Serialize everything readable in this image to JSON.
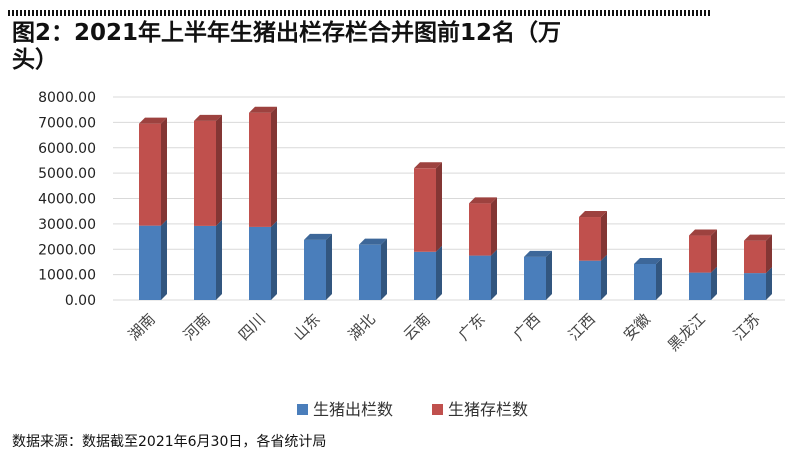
{
  "figure": {
    "title": "图2：2021年上半年生猪出栏存栏合并图前12名（万头）",
    "source_note": "数据来源：数据截至2021年6月30日，各省统计局"
  },
  "colors": {
    "series_blue": "#4a7ebb",
    "series_red": "#c0504d",
    "grid": "#d9d9d9"
  },
  "chart_data": {
    "type": "bar",
    "stacked": true,
    "style": "3d-column",
    "title": "图2：2021年上半年生猪出栏存栏合并图前12名（万头）",
    "categories": [
      "湖南",
      "河南",
      "四川",
      "山东",
      "湖北",
      "云南",
      "广东",
      "广西",
      "江西",
      "安徽",
      "黑龙江",
      "江苏"
    ],
    "series": [
      {
        "name": "生猪出栏数",
        "values": [
          2930,
          2920,
          2880,
          2370,
          2180,
          1900,
          1750,
          1700,
          1550,
          1420,
          1080,
          1060
        ]
      },
      {
        "name": "生猪存栏数",
        "values": [
          4020,
          4140,
          4500,
          0,
          0,
          3290,
          2060,
          0,
          1720,
          0,
          1460,
          1280
        ]
      }
    ],
    "yticks": [
      "0.00",
      "1000.00",
      "2000.00",
      "3000.00",
      "4000.00",
      "5000.00",
      "6000.00",
      "7000.00",
      "8000.00"
    ],
    "ylim": [
      0,
      8000
    ],
    "grid": true,
    "legend_position": "bottom"
  }
}
